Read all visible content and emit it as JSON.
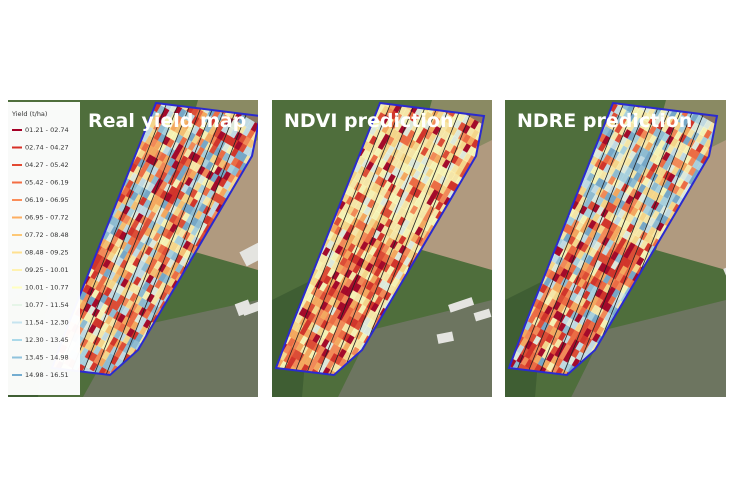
{
  "panels": [
    {
      "title": "Real yield map"
    },
    {
      "title": "NDVI prediction"
    },
    {
      "title": "NDRE prediction"
    }
  ],
  "legend": {
    "title": "Yield (t/ha)",
    "items": [
      {
        "label": "01.21 - 02.74",
        "color": "#a50026"
      },
      {
        "label": "02.74 - 04.27",
        "color": "#d73027"
      },
      {
        "label": "04.27 - 05.42",
        "color": "#e34a33"
      },
      {
        "label": "05.42 - 06.19",
        "color": "#f46d43"
      },
      {
        "label": "06.19 - 06.95",
        "color": "#fb8d59"
      },
      {
        "label": "06.95 - 07.72",
        "color": "#fdae61"
      },
      {
        "label": "07.72 - 08.48",
        "color": "#fdc877"
      },
      {
        "label": "08.48 - 09.25",
        "color": "#fee090"
      },
      {
        "label": "09.25 - 10.01",
        "color": "#fff2b0"
      },
      {
        "label": "10.01 - 10.77",
        "color": "#ffffbf"
      },
      {
        "label": "10.77 - 11.54",
        "color": "#e6f5e8"
      },
      {
        "label": "11.54 - 12.30",
        "color": "#c6e4ef"
      },
      {
        "label": "12.30 - 13.45",
        "color": "#abd9e9"
      },
      {
        "label": "13.45 - 14.98",
        "color": "#8fc3dd"
      },
      {
        "label": "14.98 - 16.51",
        "color": "#74add1"
      }
    ]
  }
}
